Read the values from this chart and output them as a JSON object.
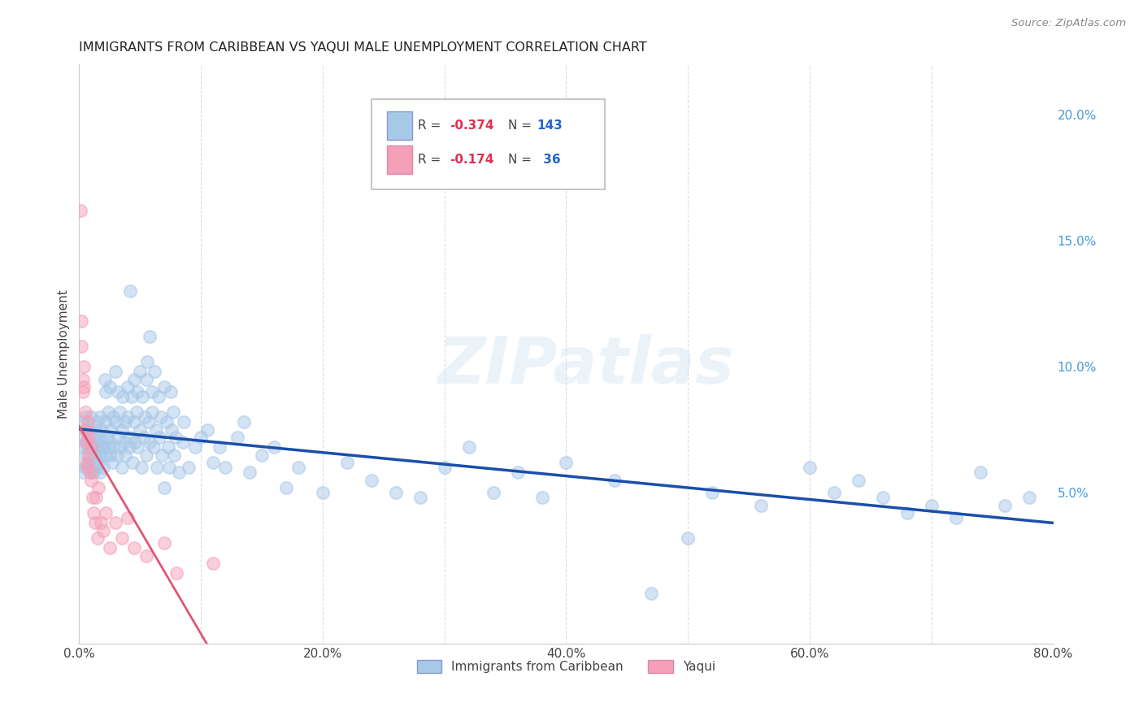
{
  "title": "IMMIGRANTS FROM CARIBBEAN VS YAQUI MALE UNEMPLOYMENT CORRELATION CHART",
  "source": "Source: ZipAtlas.com",
  "ylabel": "Male Unemployment",
  "xlim": [
    0,
    0.8
  ],
  "ylim": [
    -0.01,
    0.22
  ],
  "xticks": [
    0.0,
    0.1,
    0.2,
    0.3,
    0.4,
    0.5,
    0.6,
    0.7,
    0.8
  ],
  "xticklabels": [
    "0.0%",
    "",
    "20.0%",
    "",
    "40.0%",
    "",
    "60.0%",
    "",
    "80.0%"
  ],
  "yticks_right": [
    0.05,
    0.1,
    0.15,
    0.2
  ],
  "ytick_right_labels": [
    "5.0%",
    "10.0%",
    "15.0%",
    "20.0%"
  ],
  "caribbean_color": "#a8c8e8",
  "yaqui_color": "#f4a0b8",
  "caribbean_line_color": "#1a4faa",
  "yaqui_line_color": "#e05575",
  "watermark": "ZIPatlas",
  "caribbean_points": [
    [
      0.002,
      0.072
    ],
    [
      0.003,
      0.058
    ],
    [
      0.003,
      0.078
    ],
    [
      0.004,
      0.068
    ],
    [
      0.005,
      0.06
    ],
    [
      0.005,
      0.07
    ],
    [
      0.005,
      0.08
    ],
    [
      0.006,
      0.065
    ],
    [
      0.006,
      0.075
    ],
    [
      0.007,
      0.06
    ],
    [
      0.007,
      0.068
    ],
    [
      0.008,
      0.062
    ],
    [
      0.008,
      0.075
    ],
    [
      0.009,
      0.058
    ],
    [
      0.009,
      0.07
    ],
    [
      0.01,
      0.065
    ],
    [
      0.01,
      0.08
    ],
    [
      0.011,
      0.06
    ],
    [
      0.011,
      0.068
    ],
    [
      0.012,
      0.072
    ],
    [
      0.012,
      0.058
    ],
    [
      0.013,
      0.075
    ],
    [
      0.013,
      0.065
    ],
    [
      0.014,
      0.07
    ],
    [
      0.014,
      0.06
    ],
    [
      0.015,
      0.078
    ],
    [
      0.015,
      0.068
    ],
    [
      0.016,
      0.062
    ],
    [
      0.016,
      0.072
    ],
    [
      0.017,
      0.08
    ],
    [
      0.017,
      0.058
    ],
    [
      0.018,
      0.065
    ],
    [
      0.018,
      0.075
    ],
    [
      0.019,
      0.068
    ],
    [
      0.02,
      0.06
    ],
    [
      0.02,
      0.07
    ],
    [
      0.021,
      0.095
    ],
    [
      0.021,
      0.078
    ],
    [
      0.022,
      0.065
    ],
    [
      0.022,
      0.09
    ],
    [
      0.023,
      0.072
    ],
    [
      0.024,
      0.068
    ],
    [
      0.024,
      0.082
    ],
    [
      0.025,
      0.065
    ],
    [
      0.025,
      0.092
    ],
    [
      0.026,
      0.075
    ],
    [
      0.026,
      0.07
    ],
    [
      0.027,
      0.062
    ],
    [
      0.028,
      0.08
    ],
    [
      0.028,
      0.068
    ],
    [
      0.03,
      0.098
    ],
    [
      0.03,
      0.078
    ],
    [
      0.031,
      0.065
    ],
    [
      0.032,
      0.09
    ],
    [
      0.032,
      0.072
    ],
    [
      0.033,
      0.082
    ],
    [
      0.034,
      0.068
    ],
    [
      0.035,
      0.06
    ],
    [
      0.035,
      0.075
    ],
    [
      0.036,
      0.088
    ],
    [
      0.037,
      0.07
    ],
    [
      0.038,
      0.078
    ],
    [
      0.038,
      0.065
    ],
    [
      0.04,
      0.092
    ],
    [
      0.04,
      0.08
    ],
    [
      0.041,
      0.068
    ],
    [
      0.042,
      0.13
    ],
    [
      0.042,
      0.072
    ],
    [
      0.043,
      0.088
    ],
    [
      0.044,
      0.062
    ],
    [
      0.045,
      0.078
    ],
    [
      0.045,
      0.095
    ],
    [
      0.046,
      0.07
    ],
    [
      0.047,
      0.082
    ],
    [
      0.048,
      0.068
    ],
    [
      0.048,
      0.09
    ],
    [
      0.05,
      0.075
    ],
    [
      0.05,
      0.098
    ],
    [
      0.051,
      0.06
    ],
    [
      0.052,
      0.088
    ],
    [
      0.053,
      0.072
    ],
    [
      0.054,
      0.08
    ],
    [
      0.055,
      0.065
    ],
    [
      0.055,
      0.095
    ],
    [
      0.056,
      0.102
    ],
    [
      0.057,
      0.078
    ],
    [
      0.058,
      0.112
    ],
    [
      0.058,
      0.07
    ],
    [
      0.06,
      0.09
    ],
    [
      0.06,
      0.082
    ],
    [
      0.061,
      0.068
    ],
    [
      0.062,
      0.098
    ],
    [
      0.063,
      0.075
    ],
    [
      0.064,
      0.06
    ],
    [
      0.065,
      0.088
    ],
    [
      0.066,
      0.072
    ],
    [
      0.067,
      0.08
    ],
    [
      0.068,
      0.065
    ],
    [
      0.07,
      0.092
    ],
    [
      0.07,
      0.052
    ],
    [
      0.072,
      0.078
    ],
    [
      0.073,
      0.068
    ],
    [
      0.074,
      0.06
    ],
    [
      0.075,
      0.09
    ],
    [
      0.076,
      0.075
    ],
    [
      0.077,
      0.082
    ],
    [
      0.078,
      0.065
    ],
    [
      0.079,
      0.072
    ],
    [
      0.082,
      0.058
    ],
    [
      0.085,
      0.07
    ],
    [
      0.086,
      0.078
    ],
    [
      0.09,
      0.06
    ],
    [
      0.095,
      0.068
    ],
    [
      0.1,
      0.072
    ],
    [
      0.105,
      0.075
    ],
    [
      0.11,
      0.062
    ],
    [
      0.115,
      0.068
    ],
    [
      0.12,
      0.06
    ],
    [
      0.13,
      0.072
    ],
    [
      0.135,
      0.078
    ],
    [
      0.14,
      0.058
    ],
    [
      0.15,
      0.065
    ],
    [
      0.16,
      0.068
    ],
    [
      0.17,
      0.052
    ],
    [
      0.18,
      0.06
    ],
    [
      0.2,
      0.05
    ],
    [
      0.22,
      0.062
    ],
    [
      0.24,
      0.055
    ],
    [
      0.26,
      0.05
    ],
    [
      0.28,
      0.048
    ],
    [
      0.3,
      0.06
    ],
    [
      0.32,
      0.068
    ],
    [
      0.34,
      0.05
    ],
    [
      0.36,
      0.058
    ],
    [
      0.38,
      0.048
    ],
    [
      0.4,
      0.062
    ],
    [
      0.44,
      0.055
    ],
    [
      0.47,
      0.01
    ],
    [
      0.5,
      0.032
    ],
    [
      0.52,
      0.05
    ],
    [
      0.56,
      0.045
    ],
    [
      0.6,
      0.06
    ],
    [
      0.62,
      0.05
    ],
    [
      0.64,
      0.055
    ],
    [
      0.66,
      0.048
    ],
    [
      0.68,
      0.042
    ],
    [
      0.7,
      0.045
    ],
    [
      0.72,
      0.04
    ],
    [
      0.74,
      0.058
    ],
    [
      0.76,
      0.045
    ],
    [
      0.78,
      0.048
    ]
  ],
  "yaqui_points": [
    [
      0.001,
      0.162
    ],
    [
      0.002,
      0.118
    ],
    [
      0.002,
      0.108
    ],
    [
      0.003,
      0.095
    ],
    [
      0.003,
      0.09
    ],
    [
      0.004,
      0.1
    ],
    [
      0.004,
      0.092
    ],
    [
      0.005,
      0.082
    ],
    [
      0.005,
      0.075
    ],
    [
      0.006,
      0.07
    ],
    [
      0.006,
      0.062
    ],
    [
      0.007,
      0.078
    ],
    [
      0.007,
      0.06
    ],
    [
      0.008,
      0.072
    ],
    [
      0.008,
      0.065
    ],
    [
      0.009,
      0.058
    ],
    [
      0.01,
      0.068
    ],
    [
      0.01,
      0.055
    ],
    [
      0.011,
      0.048
    ],
    [
      0.012,
      0.042
    ],
    [
      0.013,
      0.038
    ],
    [
      0.014,
      0.048
    ],
    [
      0.015,
      0.032
    ],
    [
      0.016,
      0.052
    ],
    [
      0.018,
      0.038
    ],
    [
      0.02,
      0.035
    ],
    [
      0.022,
      0.042
    ],
    [
      0.025,
      0.028
    ],
    [
      0.03,
      0.038
    ],
    [
      0.035,
      0.032
    ],
    [
      0.04,
      0.04
    ],
    [
      0.045,
      0.028
    ],
    [
      0.055,
      0.025
    ],
    [
      0.07,
      0.03
    ],
    [
      0.08,
      0.018
    ],
    [
      0.11,
      0.022
    ]
  ]
}
